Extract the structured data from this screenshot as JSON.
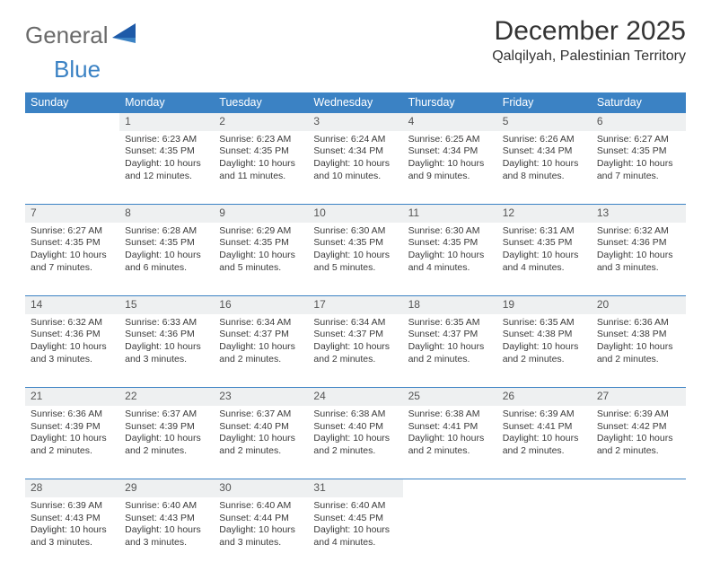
{
  "logo": {
    "word1": "General",
    "word2": "Blue"
  },
  "title": "December 2025",
  "location": "Qalqilyah, Palestinian Territory",
  "colors": {
    "header_bg": "#3b82c4",
    "header_text": "#ffffff",
    "daynum_bg": "#eef0f1",
    "body_text": "#3a3a3a",
    "logo_blue": "#3b82c4",
    "logo_gray": "#6a6a6a"
  },
  "weekdays": [
    "Sunday",
    "Monday",
    "Tuesday",
    "Wednesday",
    "Thursday",
    "Friday",
    "Saturday"
  ],
  "weeks": [
    [
      null,
      {
        "n": "1",
        "sr": "6:23 AM",
        "ss": "4:35 PM",
        "dl": "10 hours and 12 minutes."
      },
      {
        "n": "2",
        "sr": "6:23 AM",
        "ss": "4:35 PM",
        "dl": "10 hours and 11 minutes."
      },
      {
        "n": "3",
        "sr": "6:24 AM",
        "ss": "4:34 PM",
        "dl": "10 hours and 10 minutes."
      },
      {
        "n": "4",
        "sr": "6:25 AM",
        "ss": "4:34 PM",
        "dl": "10 hours and 9 minutes."
      },
      {
        "n": "5",
        "sr": "6:26 AM",
        "ss": "4:34 PM",
        "dl": "10 hours and 8 minutes."
      },
      {
        "n": "6",
        "sr": "6:27 AM",
        "ss": "4:35 PM",
        "dl": "10 hours and 7 minutes."
      }
    ],
    [
      {
        "n": "7",
        "sr": "6:27 AM",
        "ss": "4:35 PM",
        "dl": "10 hours and 7 minutes."
      },
      {
        "n": "8",
        "sr": "6:28 AM",
        "ss": "4:35 PM",
        "dl": "10 hours and 6 minutes."
      },
      {
        "n": "9",
        "sr": "6:29 AM",
        "ss": "4:35 PM",
        "dl": "10 hours and 5 minutes."
      },
      {
        "n": "10",
        "sr": "6:30 AM",
        "ss": "4:35 PM",
        "dl": "10 hours and 5 minutes."
      },
      {
        "n": "11",
        "sr": "6:30 AM",
        "ss": "4:35 PM",
        "dl": "10 hours and 4 minutes."
      },
      {
        "n": "12",
        "sr": "6:31 AM",
        "ss": "4:35 PM",
        "dl": "10 hours and 4 minutes."
      },
      {
        "n": "13",
        "sr": "6:32 AM",
        "ss": "4:36 PM",
        "dl": "10 hours and 3 minutes."
      }
    ],
    [
      {
        "n": "14",
        "sr": "6:32 AM",
        "ss": "4:36 PM",
        "dl": "10 hours and 3 minutes."
      },
      {
        "n": "15",
        "sr": "6:33 AM",
        "ss": "4:36 PM",
        "dl": "10 hours and 3 minutes."
      },
      {
        "n": "16",
        "sr": "6:34 AM",
        "ss": "4:37 PM",
        "dl": "10 hours and 2 minutes."
      },
      {
        "n": "17",
        "sr": "6:34 AM",
        "ss": "4:37 PM",
        "dl": "10 hours and 2 minutes."
      },
      {
        "n": "18",
        "sr": "6:35 AM",
        "ss": "4:37 PM",
        "dl": "10 hours and 2 minutes."
      },
      {
        "n": "19",
        "sr": "6:35 AM",
        "ss": "4:38 PM",
        "dl": "10 hours and 2 minutes."
      },
      {
        "n": "20",
        "sr": "6:36 AM",
        "ss": "4:38 PM",
        "dl": "10 hours and 2 minutes."
      }
    ],
    [
      {
        "n": "21",
        "sr": "6:36 AM",
        "ss": "4:39 PM",
        "dl": "10 hours and 2 minutes."
      },
      {
        "n": "22",
        "sr": "6:37 AM",
        "ss": "4:39 PM",
        "dl": "10 hours and 2 minutes."
      },
      {
        "n": "23",
        "sr": "6:37 AM",
        "ss": "4:40 PM",
        "dl": "10 hours and 2 minutes."
      },
      {
        "n": "24",
        "sr": "6:38 AM",
        "ss": "4:40 PM",
        "dl": "10 hours and 2 minutes."
      },
      {
        "n": "25",
        "sr": "6:38 AM",
        "ss": "4:41 PM",
        "dl": "10 hours and 2 minutes."
      },
      {
        "n": "26",
        "sr": "6:39 AM",
        "ss": "4:41 PM",
        "dl": "10 hours and 2 minutes."
      },
      {
        "n": "27",
        "sr": "6:39 AM",
        "ss": "4:42 PM",
        "dl": "10 hours and 2 minutes."
      }
    ],
    [
      {
        "n": "28",
        "sr": "6:39 AM",
        "ss": "4:43 PM",
        "dl": "10 hours and 3 minutes."
      },
      {
        "n": "29",
        "sr": "6:40 AM",
        "ss": "4:43 PM",
        "dl": "10 hours and 3 minutes."
      },
      {
        "n": "30",
        "sr": "6:40 AM",
        "ss": "4:44 PM",
        "dl": "10 hours and 3 minutes."
      },
      {
        "n": "31",
        "sr": "6:40 AM",
        "ss": "4:45 PM",
        "dl": "10 hours and 4 minutes."
      },
      null,
      null,
      null
    ]
  ],
  "labels": {
    "sunrise": "Sunrise:",
    "sunset": "Sunset:",
    "daylight": "Daylight:"
  }
}
